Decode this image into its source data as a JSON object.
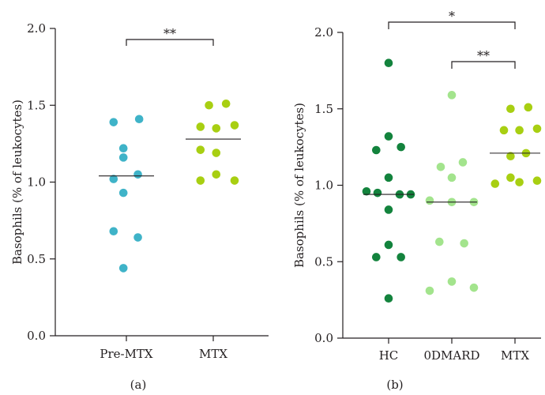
{
  "chart_data": [
    {
      "type": "scatter",
      "panel_label": "(a)",
      "ylabel": "Basophils (% of leukocytes)",
      "ylim": [
        0,
        2.0
      ],
      "yticks": [
        0.0,
        0.5,
        1.0,
        1.5,
        2.0
      ],
      "ytick_labels": [
        "0.0",
        "0.5",
        "1.0",
        "1.5",
        "2.0"
      ],
      "categories": [
        "Pre-MTX",
        "MTX"
      ],
      "series": [
        {
          "category": "Pre-MTX",
          "color": "#3fb3c8",
          "points": [
            {
              "offset": -0.3,
              "y": 1.39
            },
            {
              "offset": 0.3,
              "y": 1.41
            },
            {
              "offset": -0.07,
              "y": 1.22
            },
            {
              "offset": -0.07,
              "y": 1.16
            },
            {
              "offset": -0.3,
              "y": 1.02
            },
            {
              "offset": 0.27,
              "y": 1.05
            },
            {
              "offset": -0.07,
              "y": 0.93
            },
            {
              "offset": -0.3,
              "y": 0.68
            },
            {
              "offset": 0.27,
              "y": 0.64
            },
            {
              "offset": -0.07,
              "y": 0.44
            }
          ],
          "median": 1.04
        },
        {
          "category": "MTX",
          "color": "#a8cf12",
          "points": [
            {
              "offset": -0.1,
              "y": 1.5
            },
            {
              "offset": 0.3,
              "y": 1.51
            },
            {
              "offset": -0.3,
              "y": 1.36
            },
            {
              "offset": 0.07,
              "y": 1.35
            },
            {
              "offset": 0.5,
              "y": 1.37
            },
            {
              "offset": -0.3,
              "y": 1.21
            },
            {
              "offset": 0.07,
              "y": 1.19
            },
            {
              "offset": 0.07,
              "y": 1.05
            },
            {
              "offset": -0.3,
              "y": 1.01
            },
            {
              "offset": 0.5,
              "y": 1.01
            }
          ],
          "median": 1.28
        }
      ],
      "comparisons": [
        {
          "from": "Pre-MTX",
          "to": "MTX",
          "label": "**"
        }
      ]
    },
    {
      "type": "scatter",
      "panel_label": "(b)",
      "ylabel": "Basophils (% of leukocytes)",
      "ylim": [
        0,
        2.0
      ],
      "yticks": [
        0.0,
        0.5,
        1.0,
        1.5,
        2.0
      ],
      "ytick_labels": [
        "0.0",
        "0.5",
        "1.0",
        "1.5",
        "2.0"
      ],
      "categories": [
        "HC",
        "0DMARD",
        "MTX"
      ],
      "series": [
        {
          "category": "HC",
          "color": "#13833d",
          "points": [
            {
              "offset": 0.0,
              "y": 1.8
            },
            {
              "offset": 0.0,
              "y": 1.32
            },
            {
              "offset": -0.28,
              "y": 1.23
            },
            {
              "offset": 0.28,
              "y": 1.25
            },
            {
              "offset": 0.0,
              "y": 1.05
            },
            {
              "offset": -0.5,
              "y": 0.96
            },
            {
              "offset": -0.25,
              "y": 0.95
            },
            {
              "offset": 0.25,
              "y": 0.94
            },
            {
              "offset": 0.5,
              "y": 0.94
            },
            {
              "offset": 0.0,
              "y": 0.84
            },
            {
              "offset": 0.0,
              "y": 0.61
            },
            {
              "offset": -0.28,
              "y": 0.53
            },
            {
              "offset": 0.28,
              "y": 0.53
            },
            {
              "offset": 0.0,
              "y": 0.26
            }
          ],
          "median": 0.94
        },
        {
          "category": "0DMARD",
          "color": "#a3e48d",
          "points": [
            {
              "offset": 0.0,
              "y": 1.59
            },
            {
              "offset": -0.25,
              "y": 1.12
            },
            {
              "offset": 0.25,
              "y": 1.15
            },
            {
              "offset": 0.0,
              "y": 1.05
            },
            {
              "offset": -0.5,
              "y": 0.9
            },
            {
              "offset": 0.0,
              "y": 0.89
            },
            {
              "offset": 0.5,
              "y": 0.89
            },
            {
              "offset": -0.28,
              "y": 0.63
            },
            {
              "offset": 0.28,
              "y": 0.62
            },
            {
              "offset": 0.0,
              "y": 0.37
            },
            {
              "offset": -0.5,
              "y": 0.31
            },
            {
              "offset": 0.5,
              "y": 0.33
            }
          ],
          "median": 0.89
        },
        {
          "category": "MTX",
          "color": "#a8cf12",
          "points": [
            {
              "offset": -0.1,
              "y": 1.5
            },
            {
              "offset": 0.3,
              "y": 1.51
            },
            {
              "offset": -0.25,
              "y": 1.36
            },
            {
              "offset": 0.1,
              "y": 1.36
            },
            {
              "offset": 0.5,
              "y": 1.37
            },
            {
              "offset": -0.1,
              "y": 1.19
            },
            {
              "offset": 0.25,
              "y": 1.21
            },
            {
              "offset": -0.1,
              "y": 1.05
            },
            {
              "offset": 0.5,
              "y": 1.03
            },
            {
              "offset": -0.45,
              "y": 1.01
            },
            {
              "offset": 0.1,
              "y": 1.02
            }
          ],
          "median": 1.21
        }
      ],
      "comparisons": [
        {
          "from": "HC",
          "to": "MTX",
          "label": "*",
          "level": 2
        },
        {
          "from": "0DMARD",
          "to": "MTX",
          "label": "**",
          "level": 1
        }
      ]
    }
  ]
}
